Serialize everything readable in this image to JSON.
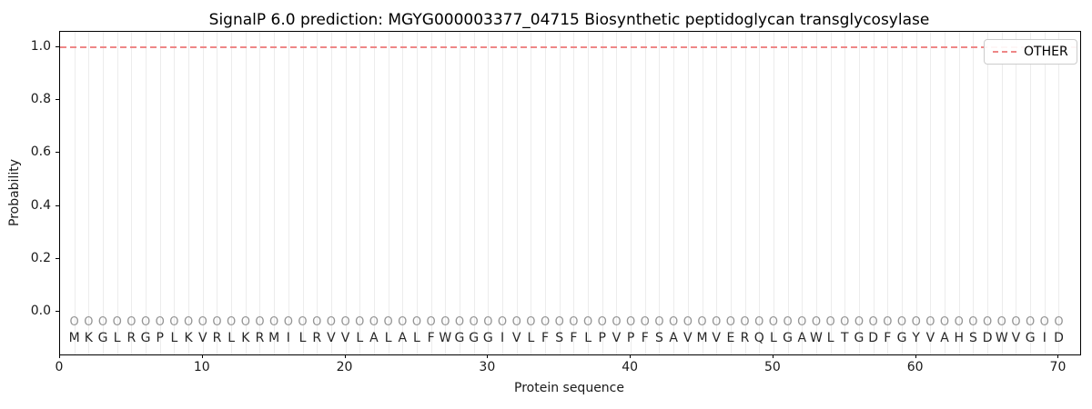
{
  "title": "SignalP 6.0 prediction: MGYG000003377_04715 Biosynthetic peptidoglycan transglycosylase",
  "axes": {
    "xlabel": "Protein sequence",
    "ylabel": "Probability",
    "xtick_labels": [
      "0",
      "10",
      "20",
      "30",
      "40",
      "50",
      "60",
      "70"
    ],
    "xtick_values": [
      0,
      10,
      20,
      30,
      40,
      50,
      60,
      70
    ],
    "ytick_labels": [
      "0.0",
      "0.2",
      "0.4",
      "0.6",
      "0.8",
      "1.0"
    ],
    "ytick_values": [
      0,
      0.2,
      0.4,
      0.6,
      0.8,
      1.0
    ]
  },
  "legend": {
    "entries": [
      {
        "label": "OTHER",
        "linestyle": "dashed",
        "color": "#ee8787"
      }
    ],
    "position": "upper right"
  },
  "chart_data": {
    "type": "line",
    "title": "SignalP 6.0 prediction: MGYG000003377_04715 Biosynthetic peptidoglycan transglycosylase",
    "xlabel": "Protein sequence",
    "ylabel": "Probability",
    "xlim": [
      0,
      71.5
    ],
    "ylim": [
      -0.16,
      1.06
    ],
    "grid": "vertical line at each residue position, light gray",
    "legend_position": "upper right",
    "series": [
      {
        "name": "OTHER",
        "linestyle": "dashed",
        "color": "#ee8787",
        "description": "horizontal dashed line, constant probability 1.0 across the full axis (all 70 residues predicted OTHER)",
        "x": [
          0,
          71.5
        ],
        "y": [
          1.0,
          1.0
        ]
      }
    ],
    "sequence": "MKGLRGPLKVRLKRMILRVVLALALFWGGGIVLFSFLPVPFSAVMVERQLGAWLTGDFGYVAHSDWVGID",
    "residue_annotation": "OOOOOOOOOOOOOOOOOOOOOOOOOOOOOOOOOOOOOOOOOOOOOOOOOOOOOOOOOOOOOOOOOOOOOO",
    "sequence_length": 70
  },
  "colors": {
    "other_line": "#ee8787",
    "grid": "#ececec",
    "annotation_o": "#949494",
    "sequence_letter": "#262626",
    "spine": "#000000",
    "legend_border": "#cccccc"
  }
}
